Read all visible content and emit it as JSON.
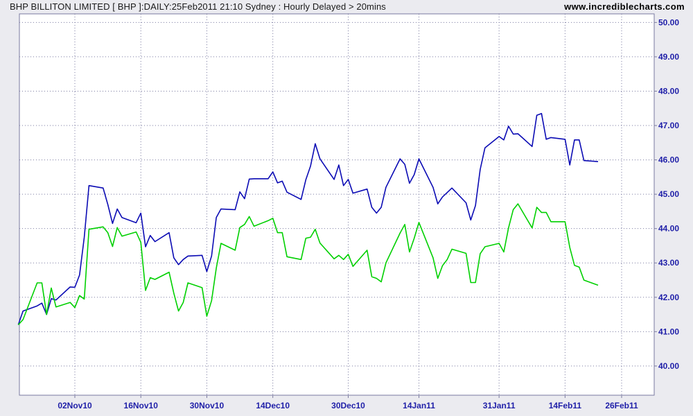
{
  "header": {
    "title": "BHP BILLITON LIMITED [ BHP ]:DAILY:25Feb2011 21:10 Sydney : Hourly Delayed > 20mins",
    "source": "www.incrediblecharts.com"
  },
  "colors": {
    "background": "#ebebf0",
    "plot_background": "#ffffff",
    "grid": "#7a7aa0",
    "axis_text": "#1f1fa8",
    "series_1": "#0b0bb4",
    "series_2": "#00d000"
  },
  "chart_data": {
    "type": "line",
    "title": "BHP BILLITON LIMITED [ BHP ]:DAILY:25Feb2011 21:10 Sydney : Hourly Delayed > 20mins",
    "x_start_date": "2010-10-21",
    "x_tick_labels": [
      "02Nov10",
      "16Nov10",
      "30Nov10",
      "14Dec10",
      "30Dec10",
      "14Jan11",
      "31Jan11",
      "14Feb11",
      "26Feb11"
    ],
    "x_tick_dates": [
      "2010-11-02",
      "2010-11-16",
      "2010-11-30",
      "2010-12-14",
      "2010-12-30",
      "2011-01-14",
      "2011-01-31",
      "2011-02-14",
      "2011-02-26"
    ],
    "y_ticks": [
      "40.00",
      "41.00",
      "42.00",
      "43.00",
      "44.00",
      "45.00",
      "46.00",
      "47.00",
      "48.00",
      "49.00",
      "50.00"
    ],
    "ylim": [
      39.15,
      50.25
    ],
    "grid": true,
    "series": [
      {
        "color": "#0b0bb4",
        "values": [
          41.2,
          41.6,
          41.75,
          41.83,
          41.5,
          41.96,
          41.92,
          42.3,
          42.29,
          42.65,
          43.75,
          45.25,
          45.18,
          44.7,
          44.15,
          44.57,
          44.32,
          44.17,
          44.45,
          43.47,
          43.8,
          43.62,
          43.88,
          43.15,
          42.95,
          43.1,
          43.2,
          43.22,
          42.75,
          43.2,
          44.32,
          44.57,
          44.55,
          45.07,
          44.87,
          45.44,
          45.45,
          45.45,
          45.65,
          45.33,
          45.38,
          45.06,
          44.85,
          45.42,
          45.82,
          46.47,
          46.03,
          45.43,
          45.85,
          45.25,
          45.43,
          45.03,
          45.15,
          44.62,
          44.45,
          44.62,
          45.2,
          46.03,
          45.87,
          45.32,
          45.57,
          46.03,
          45.2,
          44.72,
          44.92,
          45.05,
          45.18,
          44.75,
          44.25,
          44.67,
          45.72,
          46.35,
          46.68,
          46.58,
          46.98,
          46.75,
          46.76,
          46.39,
          47.3,
          47.35,
          46.6,
          46.65,
          46.6,
          45.85,
          46.58,
          46.58,
          45.98,
          45.95
        ]
      },
      {
        "color": "#00d000",
        "values": [
          41.2,
          41.35,
          42.42,
          42.42,
          41.5,
          42.27,
          41.72,
          41.85,
          41.7,
          42.05,
          41.95,
          43.98,
          44.05,
          43.88,
          43.48,
          44.03,
          43.78,
          43.9,
          43.6,
          42.2,
          42.57,
          42.52,
          42.73,
          42.12,
          41.6,
          41.85,
          42.42,
          42.28,
          41.45,
          41.9,
          42.85,
          43.57,
          43.37,
          44.03,
          44.12,
          44.35,
          44.07,
          44.23,
          44.3,
          43.88,
          43.88,
          43.18,
          43.1,
          43.72,
          43.75,
          43.98,
          43.58,
          43.12,
          43.22,
          43.1,
          43.25,
          42.9,
          43.37,
          42.6,
          42.55,
          42.45,
          43.0,
          43.87,
          44.12,
          43.32,
          43.72,
          44.18,
          43.15,
          42.55,
          42.92,
          43.1,
          43.4,
          43.28,
          42.43,
          42.43,
          43.27,
          43.47,
          43.57,
          43.32,
          44.02,
          44.55,
          44.72,
          44.02,
          44.62,
          44.47,
          44.47,
          44.2,
          44.2,
          43.45,
          42.93,
          42.88,
          42.5,
          42.35
        ]
      }
    ]
  }
}
